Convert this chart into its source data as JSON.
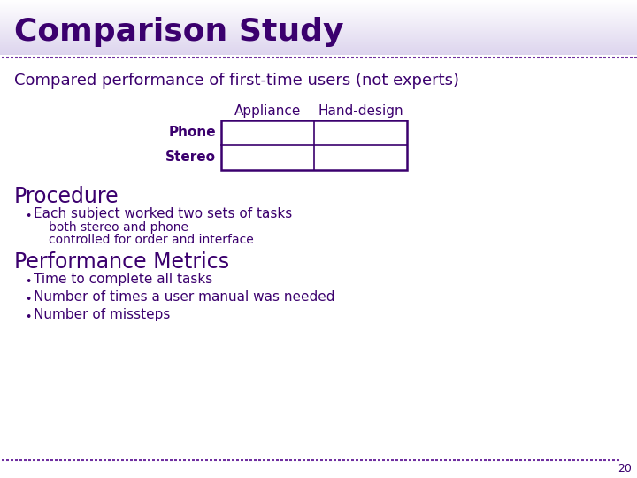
{
  "title": "Comparison Study",
  "title_color": "#3b006e",
  "title_fontsize": 26,
  "title_bg_top": "#ffffff",
  "title_bg_bottom": "#ddd5ee",
  "header_line_color": "#6a0dad",
  "subtitle": "Compared performance of first-time users (not experts)",
  "subtitle_fontsize": 13,
  "subtitle_color": "#3b006e",
  "table_col_headers": [
    "Appliance",
    "Hand-design"
  ],
  "table_row_headers": [
    "Phone",
    "Stereo"
  ],
  "table_header_fontsize": 11,
  "table_row_fontsize": 11,
  "table_color": "#3b006e",
  "section1_title": "Procedure",
  "section1_fontsize": 17,
  "section1_color": "#3b006e",
  "bullet1": "Each subject worked two sets of tasks",
  "bullet1_fontsize": 11,
  "sub_bullet1": "both stereo and phone",
  "sub_bullet2": "controlled for order and interface",
  "sub_bullet_fontsize": 10,
  "section2_title": "Performance Metrics",
  "section2_fontsize": 17,
  "section2_color": "#3b006e",
  "bullet2": "Time to complete all tasks",
  "bullet3": "Number of times a user manual was needed",
  "bullet4": "Number of missteps",
  "bullet_fontsize": 11,
  "footer_number": "20",
  "bg_color": "#ffffff",
  "dotted_line_color": "#7030a0",
  "text_color": "#3b006e"
}
